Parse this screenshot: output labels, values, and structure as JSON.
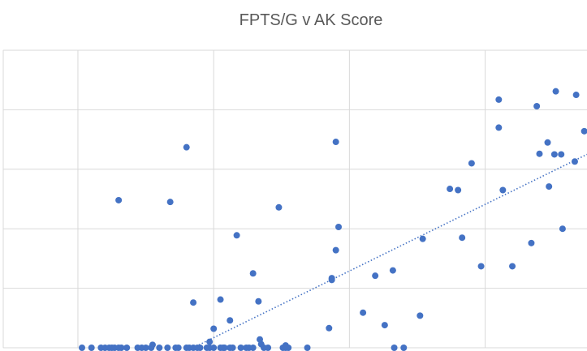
{
  "chart_data": {
    "type": "scatter",
    "title": "FPTS/G v AK Score",
    "xlabel": "",
    "ylabel": "",
    "xlim": [
      -0.55,
      3.75
    ],
    "ylim": [
      0,
      5
    ],
    "grid": true,
    "tick_labels_visible": false,
    "colors": {
      "marker": "#4472C4",
      "trendline": "#4472C4",
      "grid": "#d9d9d9"
    },
    "trendline": {
      "type": "linear",
      "style": "dotted",
      "intercept": -0.95,
      "slope": 1.12
    },
    "points": [
      {
        "x": 0.03,
        "y": 0.0
      },
      {
        "x": 0.1,
        "y": 0.0
      },
      {
        "x": 0.17,
        "y": 0.0
      },
      {
        "x": 0.2,
        "y": 0.0
      },
      {
        "x": 0.23,
        "y": 0.0
      },
      {
        "x": 0.25,
        "y": 0.0
      },
      {
        "x": 0.27,
        "y": 0.0
      },
      {
        "x": 0.3,
        "y": 0.0
      },
      {
        "x": 0.32,
        "y": 0.0
      },
      {
        "x": 0.36,
        "y": 0.0
      },
      {
        "x": 0.44,
        "y": 0.0
      },
      {
        "x": 0.47,
        "y": 0.0
      },
      {
        "x": 0.5,
        "y": 0.0
      },
      {
        "x": 0.54,
        "y": 0.0
      },
      {
        "x": 0.55,
        "y": 0.05
      },
      {
        "x": 0.6,
        "y": 0.0
      },
      {
        "x": 0.66,
        "y": 0.0
      },
      {
        "x": 0.72,
        "y": 0.0
      },
      {
        "x": 0.74,
        "y": 0.0
      },
      {
        "x": 0.8,
        "y": 0.0
      },
      {
        "x": 0.82,
        "y": 0.0
      },
      {
        "x": 0.85,
        "y": 0.0
      },
      {
        "x": 0.88,
        "y": 0.0
      },
      {
        "x": 0.9,
        "y": 0.0
      },
      {
        "x": 0.95,
        "y": 0.0
      },
      {
        "x": 0.97,
        "y": 0.0
      },
      {
        "x": 1.0,
        "y": 0.0
      },
      {
        "x": 1.05,
        "y": 0.0
      },
      {
        "x": 1.07,
        "y": 0.0
      },
      {
        "x": 1.08,
        "y": 0.0
      },
      {
        "x": 1.12,
        "y": 0.0
      },
      {
        "x": 1.14,
        "y": 0.0
      },
      {
        "x": 1.2,
        "y": 0.0
      },
      {
        "x": 1.24,
        "y": 0.0
      },
      {
        "x": 1.26,
        "y": 0.0
      },
      {
        "x": 1.29,
        "y": 0.0
      },
      {
        "x": 1.37,
        "y": 0.0
      },
      {
        "x": 1.4,
        "y": 0.0
      },
      {
        "x": 1.51,
        "y": 0.0
      },
      {
        "x": 1.53,
        "y": 0.0
      },
      {
        "x": 1.55,
        "y": 0.0
      },
      {
        "x": 1.69,
        "y": 0.0
      },
      {
        "x": 2.33,
        "y": 0.0
      },
      {
        "x": 2.4,
        "y": 0.0
      },
      {
        "x": 1.35,
        "y": 0.06
      },
      {
        "x": 1.53,
        "y": 0.04
      },
      {
        "x": 1.34,
        "y": 0.14
      },
      {
        "x": 0.97,
        "y": 0.1
      },
      {
        "x": 1.0,
        "y": 0.32
      },
      {
        "x": 1.12,
        "y": 0.46
      },
      {
        "x": 0.85,
        "y": 0.76
      },
      {
        "x": 1.05,
        "y": 0.81
      },
      {
        "x": 1.33,
        "y": 0.78
      },
      {
        "x": 1.29,
        "y": 1.25
      },
      {
        "x": 1.17,
        "y": 1.89
      },
      {
        "x": 1.48,
        "y": 2.36
      },
      {
        "x": 0.3,
        "y": 2.48
      },
      {
        "x": 0.68,
        "y": 2.45
      },
      {
        "x": 0.8,
        "y": 3.37
      },
      {
        "x": 1.85,
        "y": 0.33
      },
      {
        "x": 2.26,
        "y": 0.38
      },
      {
        "x": 2.1,
        "y": 0.59
      },
      {
        "x": 1.87,
        "y": 1.14
      },
      {
        "x": 2.19,
        "y": 1.21
      },
      {
        "x": 1.87,
        "y": 1.17
      },
      {
        "x": 1.9,
        "y": 1.64
      },
      {
        "x": 2.32,
        "y": 1.3
      },
      {
        "x": 2.54,
        "y": 1.83
      },
      {
        "x": 1.92,
        "y": 2.03
      },
      {
        "x": 1.9,
        "y": 3.46
      },
      {
        "x": 2.52,
        "y": 0.54
      },
      {
        "x": 3.2,
        "y": 1.37
      },
      {
        "x": 3.34,
        "y": 1.76
      },
      {
        "x": 3.57,
        "y": 2.0
      },
      {
        "x": 3.13,
        "y": 2.65
      },
      {
        "x": 2.97,
        "y": 1.37
      },
      {
        "x": 3.1,
        "y": 3.7
      },
      {
        "x": 3.46,
        "y": 3.45
      },
      {
        "x": 3.66,
        "y": 3.13
      },
      {
        "x": 3.73,
        "y": 3.64
      },
      {
        "x": 3.4,
        "y": 3.26
      },
      {
        "x": 3.47,
        "y": 2.71
      },
      {
        "x": 3.52,
        "y": 4.31
      },
      {
        "x": 3.56,
        "y": 3.25
      },
      {
        "x": 3.51,
        "y": 3.25
      },
      {
        "x": 3.78,
        "y": 3.26
      },
      {
        "x": 3.1,
        "y": 4.17
      },
      {
        "x": 3.67,
        "y": 4.25
      },
      {
        "x": 2.8,
        "y": 2.65
      },
      {
        "x": 2.83,
        "y": 1.85
      },
      {
        "x": 2.74,
        "y": 2.67
      },
      {
        "x": 2.9,
        "y": 3.1
      },
      {
        "x": 3.38,
        "y": 4.06
      }
    ]
  }
}
